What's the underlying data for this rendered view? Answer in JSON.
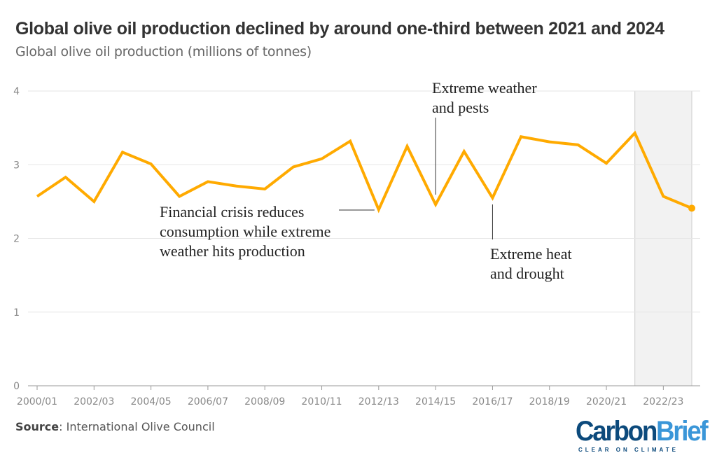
{
  "title": "Global olive oil production declined by around one-third between 2021 and 2024",
  "subtitle": "Global olive oil production (millions of tonnes)",
  "source_label": "Source",
  "source_text": ": International Olive Council",
  "logo": {
    "part1": "Carbon",
    "part2": "Brief",
    "tagline": "CLEAR ON CLIMATE"
  },
  "chart_data": {
    "type": "line",
    "x": [
      "2000/01",
      "2001/02",
      "2002/03",
      "2003/04",
      "2004/05",
      "2005/06",
      "2006/07",
      "2007/08",
      "2008/09",
      "2009/10",
      "2010/11",
      "2011/12",
      "2012/13",
      "2013/14",
      "2014/15",
      "2015/16",
      "2016/17",
      "2017/18",
      "2018/19",
      "2019/20",
      "2020/21",
      "2021/22",
      "2022/23",
      "2023/24"
    ],
    "values": [
      2.57,
      2.83,
      2.5,
      3.17,
      3.01,
      2.57,
      2.77,
      2.71,
      2.67,
      2.97,
      3.08,
      3.32,
      2.39,
      3.25,
      2.46,
      3.18,
      2.55,
      3.38,
      3.31,
      3.27,
      3.02,
      3.43,
      2.57,
      2.41
    ],
    "xtick_labels": [
      "2000/01",
      "2002/03",
      "2004/05",
      "2006/07",
      "2008/09",
      "2010/11",
      "2012/13",
      "2014/15",
      "2016/17",
      "2018/19",
      "2020/21",
      "2022/23"
    ],
    "yticks": [
      0,
      1,
      2,
      3,
      4
    ],
    "ylim": [
      0,
      4
    ],
    "grid": true,
    "line_color": "#ffaa00",
    "shaded_range": [
      "2021/22",
      "2023/24"
    ],
    "annotations": [
      {
        "at": "2012/13",
        "lines": [
          "Financial crisis reduces",
          "consumption while extreme",
          "weather hits production"
        ]
      },
      {
        "at": "2014/15",
        "lines": [
          "Extreme weather",
          "and pests"
        ]
      },
      {
        "at": "2016/17",
        "lines": [
          "Extreme heat",
          "and drought"
        ]
      }
    ]
  }
}
